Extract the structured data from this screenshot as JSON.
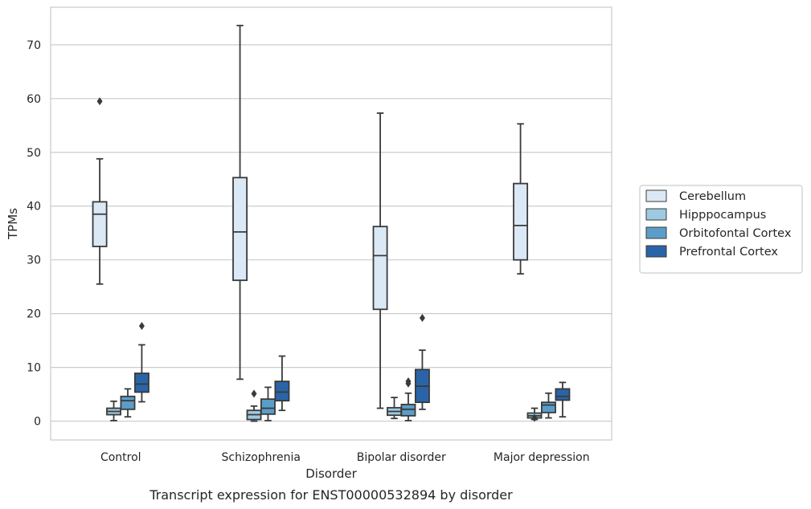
{
  "caption": "Transcript expression for ENST00000532894 by disorder",
  "chart_data": {
    "type": "box",
    "xlabel": "Disorder",
    "ylabel": "TPMs",
    "ylim": [
      -3.5,
      77
    ],
    "yticks": [
      0,
      10,
      20,
      30,
      40,
      50,
      60,
      70
    ],
    "grid": "horizontal",
    "legend_position": "right",
    "categories": [
      "Control",
      "Schizophrenia",
      "Bipolar disorder",
      "Major depression"
    ],
    "series": [
      {
        "name": "Cerebellum",
        "color": "#dbe9f6",
        "boxes": [
          {
            "whislo": 25.5,
            "q1": 32.5,
            "med": 38.5,
            "q3": 40.8,
            "whishi": 48.8,
            "fliers": [
              59.5
            ]
          },
          {
            "whislo": 7.8,
            "q1": 26.2,
            "med": 35.2,
            "q3": 45.3,
            "whishi": 73.6,
            "fliers": []
          },
          {
            "whislo": 2.4,
            "q1": 20.8,
            "med": 30.8,
            "q3": 36.2,
            "whishi": 57.3,
            "fliers": []
          },
          {
            "whislo": 27.4,
            "q1": 30.0,
            "med": 36.4,
            "q3": 44.2,
            "whishi": 55.3,
            "fliers": []
          }
        ]
      },
      {
        "name": "Hipppocampus",
        "color": "#9ecae1",
        "boxes": [
          {
            "whislo": 0.1,
            "q1": 1.2,
            "med": 1.8,
            "q3": 2.4,
            "whishi": 3.7,
            "fliers": []
          },
          {
            "whislo": 0.0,
            "q1": 0.3,
            "med": 1.2,
            "q3": 2.0,
            "whishi": 2.8,
            "fliers": [
              5.1
            ]
          },
          {
            "whislo": 0.5,
            "q1": 1.1,
            "med": 1.8,
            "q3": 2.5,
            "whishi": 4.4,
            "fliers": []
          },
          {
            "whislo": 0.3,
            "q1": 0.6,
            "med": 1.0,
            "q3": 1.5,
            "whishi": 2.4,
            "fliers": [
              0.6
            ]
          }
        ]
      },
      {
        "name": "Orbitofontal Cortex",
        "color": "#5b9dc9",
        "boxes": [
          {
            "whislo": 0.8,
            "q1": 2.2,
            "med": 3.8,
            "q3": 4.6,
            "whishi": 6.0,
            "fliers": []
          },
          {
            "whislo": 0.1,
            "q1": 1.3,
            "med": 2.4,
            "q3": 4.1,
            "whishi": 6.3,
            "fliers": []
          },
          {
            "whislo": 0.1,
            "q1": 1.0,
            "med": 2.2,
            "q3": 3.1,
            "whishi": 5.2,
            "fliers": [
              7.0,
              7.4
            ]
          },
          {
            "whislo": 0.6,
            "q1": 1.6,
            "med": 3.0,
            "q3": 3.5,
            "whishi": 5.2,
            "fliers": []
          }
        ]
      },
      {
        "name": "Prefrontal Cortex",
        "color": "#2a64a8",
        "boxes": [
          {
            "whislo": 3.6,
            "q1": 5.4,
            "med": 6.9,
            "q3": 8.9,
            "whishi": 14.2,
            "fliers": [
              17.7
            ]
          },
          {
            "whislo": 2.0,
            "q1": 3.8,
            "med": 5.4,
            "q3": 7.4,
            "whishi": 12.1,
            "fliers": []
          },
          {
            "whislo": 2.2,
            "q1": 3.5,
            "med": 6.5,
            "q3": 9.6,
            "whishi": 13.2,
            "fliers": [
              19.2
            ]
          },
          {
            "whislo": 0.8,
            "q1": 3.9,
            "med": 4.6,
            "q3": 6.0,
            "whishi": 7.2,
            "fliers": []
          }
        ]
      }
    ]
  }
}
